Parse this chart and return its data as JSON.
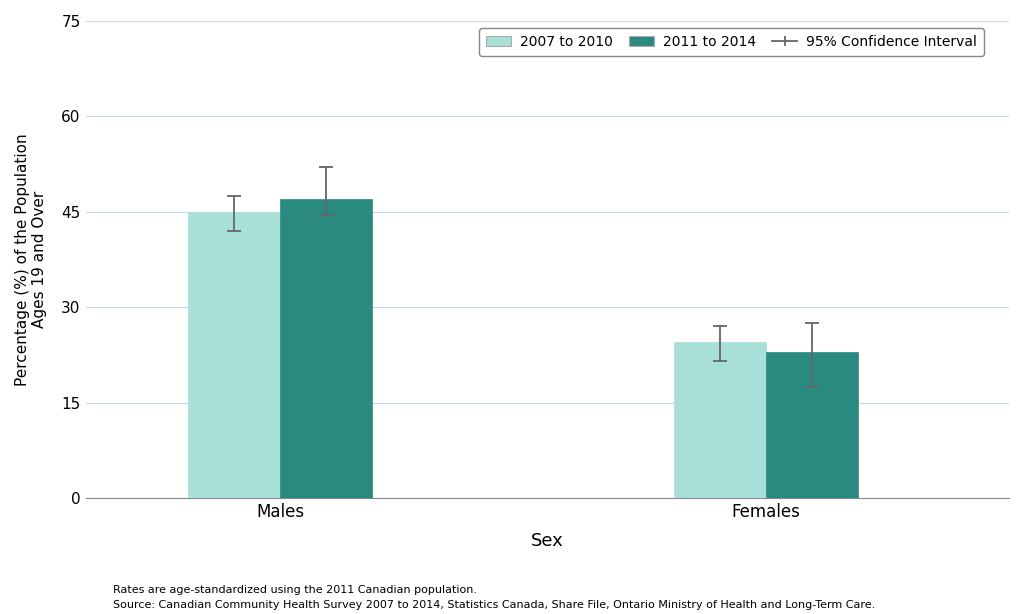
{
  "categories": [
    "Males",
    "Females"
  ],
  "series": [
    {
      "label": "2007 to 2010",
      "color": "#a8e0d8",
      "values": [
        45.0,
        24.5
      ],
      "ci_lower": [
        42.0,
        21.5
      ],
      "ci_upper": [
        47.5,
        27.0
      ]
    },
    {
      "label": "2011 to 2014",
      "color": "#2a8a80",
      "values": [
        47.0,
        23.0
      ],
      "ci_lower": [
        44.5,
        17.5
      ],
      "ci_upper": [
        52.0,
        27.5
      ]
    }
  ],
  "xlabel": "Sex",
  "ylabel": "Percentage (%) of the Population\nAges 19 and Over",
  "ylim": [
    0,
    75
  ],
  "yticks": [
    0,
    15,
    30,
    45,
    60,
    75
  ],
  "bar_width": 0.38,
  "background_color": "#ffffff",
  "grid_color": "#c8d8e8",
  "ci_color": "#666666",
  "footnote_line1": "Rates are age-standardized using the 2011 Canadian population.",
  "footnote_line2": "Source: Canadian Community Health Survey 2007 to 2014, Statistics Canada, Share File, Ontario Ministry of Health and Long-Term Care.",
  "group_positions": [
    1.0,
    3.0
  ],
  "xlim": [
    0.2,
    4.0
  ]
}
